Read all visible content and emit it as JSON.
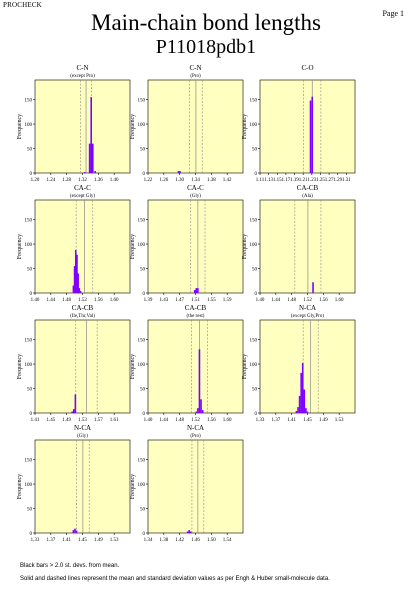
{
  "header": {
    "program": "PROCHECK",
    "page_label": "Page  1"
  },
  "title": "Main-chain bond lengths",
  "subtitle": "P11018pdb1",
  "footnotes": {
    "line1": "Black bars > 2.0 st. devs. from mean.",
    "line2": "Solid and dashed lines represent the mean and standard deviation values as per Engh & Huber small-molecule data."
  },
  "colors": {
    "panel_bg": "#ffffc0",
    "bar": "#8000ff",
    "axis": "#000000",
    "ref_line": "#8a8a8a"
  },
  "chart_data": [
    {
      "type": "bar",
      "title": "C-N",
      "subtitle": "(except Pro)",
      "ylabel": "Frequency",
      "xticks": [
        1.2,
        1.24,
        1.28,
        1.32,
        1.36,
        1.4
      ],
      "xlim": [
        1.2,
        1.44
      ],
      "yticks": [
        0,
        50,
        100,
        150
      ],
      "ylim": [
        0,
        190
      ],
      "mean": 1.329,
      "sd": 0.014,
      "bars": [
        {
          "x": 1.326,
          "y": 2
        },
        {
          "x": 1.338,
          "y": 60
        },
        {
          "x": 1.342,
          "y": 155
        },
        {
          "x": 1.346,
          "y": 60
        },
        {
          "x": 1.352,
          "y": 4
        }
      ]
    },
    {
      "type": "bar",
      "title": "C-N",
      "subtitle": "(Pro)",
      "ylabel": "Frequency",
      "xticks": [
        1.22,
        1.26,
        1.3,
        1.34,
        1.38,
        1.42
      ],
      "xlim": [
        1.22,
        1.46
      ],
      "yticks": [
        0,
        50,
        100,
        150
      ],
      "ylim": [
        0,
        190
      ],
      "mean": 1.341,
      "sd": 0.016,
      "bars": [
        {
          "x": 1.297,
          "y": 4
        },
        {
          "x": 1.301,
          "y": 4
        }
      ]
    },
    {
      "type": "bar",
      "title": "C-O",
      "subtitle": "",
      "ylabel": "Frequency",
      "xticks": [
        1.11,
        1.13,
        1.15,
        1.17,
        1.19,
        1.21,
        1.23,
        1.25,
        1.27,
        1.29,
        1.31
      ],
      "xlim": [
        1.11,
        1.33
      ],
      "yticks": [
        0,
        50,
        100,
        150
      ],
      "ylim": [
        0,
        190
      ],
      "mean": 1.231,
      "sd": 0.02,
      "bars": [
        {
          "x": 1.227,
          "y": 148
        },
        {
          "x": 1.231,
          "y": 156
        }
      ]
    },
    {
      "type": "bar",
      "title": "CA-C",
      "subtitle": "(except Gly)",
      "ylabel": "Frequency",
      "xticks": [
        1.4,
        1.44,
        1.48,
        1.52,
        1.56,
        1.6
      ],
      "xlim": [
        1.4,
        1.64
      ],
      "yticks": [
        0,
        50,
        100,
        150
      ],
      "ylim": [
        0,
        190
      ],
      "mean": 1.525,
      "sd": 0.021,
      "bars": [
        {
          "x": 1.497,
          "y": 15
        },
        {
          "x": 1.5,
          "y": 55
        },
        {
          "x": 1.503,
          "y": 88
        },
        {
          "x": 1.506,
          "y": 78
        },
        {
          "x": 1.509,
          "y": 40
        },
        {
          "x": 1.512,
          "y": 10
        },
        {
          "x": 1.515,
          "y": 4
        }
      ]
    },
    {
      "type": "bar",
      "title": "CA-C",
      "subtitle": "(Gly)",
      "ylabel": "Frequency",
      "xticks": [
        1.39,
        1.43,
        1.47,
        1.51,
        1.55,
        1.59
      ],
      "xlim": [
        1.39,
        1.63
      ],
      "yticks": [
        0,
        50,
        100,
        150
      ],
      "ylim": [
        0,
        190
      ],
      "mean": 1.516,
      "sd": 0.018,
      "bars": [
        {
          "x": 1.508,
          "y": 6
        },
        {
          "x": 1.512,
          "y": 10
        },
        {
          "x": 1.516,
          "y": 10
        }
      ]
    },
    {
      "type": "bar",
      "title": "CA-CB",
      "subtitle": "(Ala)",
      "ylabel": "Frequency",
      "xticks": [
        1.4,
        1.44,
        1.48,
        1.52,
        1.56,
        1.6
      ],
      "xlim": [
        1.4,
        1.64
      ],
      "yticks": [
        0,
        50,
        100,
        150
      ],
      "ylim": [
        0,
        190
      ],
      "mean": 1.521,
      "sd": 0.033,
      "bars": [
        {
          "x": 1.534,
          "y": 22
        }
      ]
    },
    {
      "type": "bar",
      "title": "CA-CB",
      "subtitle": "(Ile,Thr,Val)",
      "ylabel": "Frequency",
      "xticks": [
        1.41,
        1.45,
        1.49,
        1.53,
        1.57,
        1.61
      ],
      "xlim": [
        1.41,
        1.65
      ],
      "yticks": [
        0,
        50,
        100,
        150
      ],
      "ylim": [
        0,
        190
      ],
      "mean": 1.54,
      "sd": 0.027,
      "bars": [
        {
          "x": 1.504,
          "y": 3
        },
        {
          "x": 1.508,
          "y": 8
        },
        {
          "x": 1.512,
          "y": 38
        }
      ]
    },
    {
      "type": "bar",
      "title": "CA-CB",
      "subtitle": "(the rest)",
      "ylabel": "Frequency",
      "xticks": [
        1.4,
        1.44,
        1.48,
        1.52,
        1.56,
        1.6
      ],
      "xlim": [
        1.4,
        1.64
      ],
      "yticks": [
        0,
        50,
        100,
        150
      ],
      "ylim": [
        0,
        190
      ],
      "mean": 1.53,
      "sd": 0.02,
      "bars": [
        {
          "x": 1.522,
          "y": 3
        },
        {
          "x": 1.526,
          "y": 10
        },
        {
          "x": 1.53,
          "y": 130
        },
        {
          "x": 1.534,
          "y": 28
        },
        {
          "x": 1.538,
          "y": 6
        }
      ]
    },
    {
      "type": "bar",
      "title": "N-CA",
      "subtitle": "(except Gly,Pro)",
      "ylabel": "Frequency",
      "xticks": [
        1.33,
        1.37,
        1.41,
        1.45,
        1.49,
        1.53
      ],
      "xlim": [
        1.33,
        1.57
      ],
      "yticks": [
        0,
        50,
        100,
        150
      ],
      "ylim": [
        0,
        190
      ],
      "mean": 1.458,
      "sd": 0.019,
      "bars": [
        {
          "x": 1.422,
          "y": 4
        },
        {
          "x": 1.426,
          "y": 12
        },
        {
          "x": 1.43,
          "y": 35
        },
        {
          "x": 1.434,
          "y": 82
        },
        {
          "x": 1.438,
          "y": 102
        },
        {
          "x": 1.442,
          "y": 48
        },
        {
          "x": 1.446,
          "y": 10
        },
        {
          "x": 1.45,
          "y": 3
        }
      ]
    },
    {
      "type": "bar",
      "title": "N-CA",
      "subtitle": "(Gly)",
      "ylabel": "Frequency",
      "xticks": [
        1.33,
        1.37,
        1.41,
        1.45,
        1.49,
        1.53
      ],
      "xlim": [
        1.33,
        1.57
      ],
      "yticks": [
        0,
        50,
        100,
        150
      ],
      "ylim": [
        0,
        190
      ],
      "mean": 1.451,
      "sd": 0.016,
      "bars": [
        {
          "x": 1.427,
          "y": 6
        },
        {
          "x": 1.431,
          "y": 9
        },
        {
          "x": 1.435,
          "y": 5
        }
      ]
    },
    {
      "type": "bar",
      "title": "N-CA",
      "subtitle": "(Pro)",
      "ylabel": "Frequency",
      "xticks": [
        1.34,
        1.38,
        1.42,
        1.46,
        1.5,
        1.54
      ],
      "xlim": [
        1.34,
        1.58
      ],
      "yticks": [
        0,
        50,
        100,
        150
      ],
      "ylim": [
        0,
        190
      ],
      "mean": 1.466,
      "sd": 0.015,
      "bars": [
        {
          "x": 1.44,
          "y": 3
        },
        {
          "x": 1.444,
          "y": 6
        },
        {
          "x": 1.448,
          "y": 3
        }
      ]
    }
  ]
}
